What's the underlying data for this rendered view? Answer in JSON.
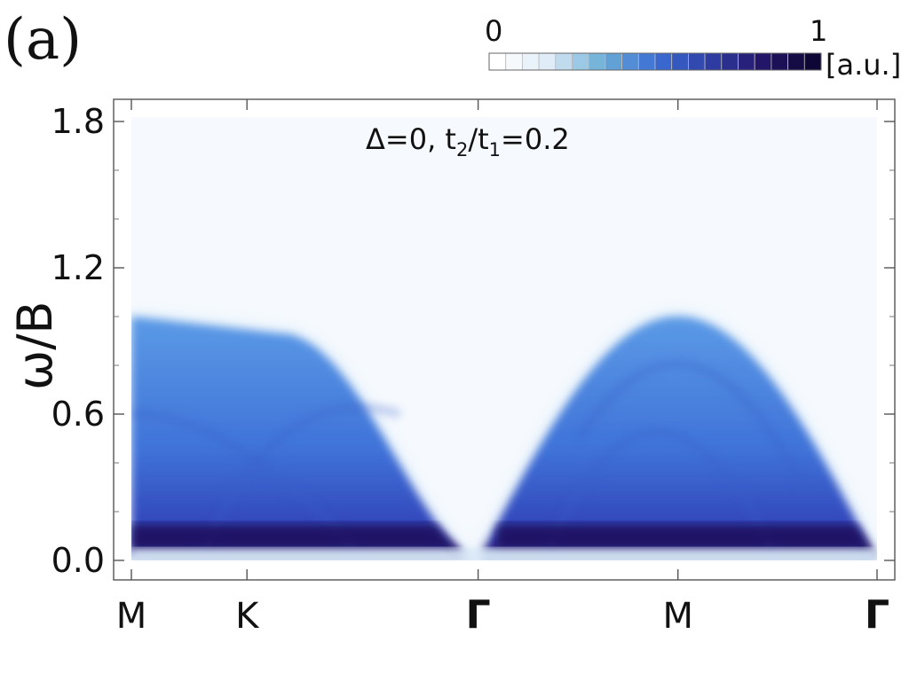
{
  "panel_label": "(a)",
  "colorbar": {
    "min_label": "0",
    "max_label": "1",
    "unit": "[a.u.]",
    "levels": 20,
    "colors": [
      "#ffffff",
      "#deebf7",
      "#6baed6",
      "#3b6fd4",
      "#2f3fa6",
      "#24166b",
      "#0e0735"
    ]
  },
  "chart_data": {
    "type": "heatmap",
    "title": "",
    "annotation": {
      "delta_text": "Δ=0, t",
      "sub1": "2",
      "slash_t": "/t",
      "sub2": "1",
      "ratio_text": "=0.2"
    },
    "xlabel": "",
    "ylabel": "ω/B",
    "ylim": [
      0.0,
      1.85
    ],
    "yticks": [
      {
        "value": 0.0,
        "label": "0.0"
      },
      {
        "value": 0.6,
        "label": "0.6"
      },
      {
        "value": 1.2,
        "label": "1.2"
      },
      {
        "value": 1.8,
        "label": "1.8"
      }
    ],
    "xticks": [
      {
        "position": 0.0,
        "label": "M"
      },
      {
        "position": 0.155,
        "label": "K"
      },
      {
        "position": 0.465,
        "label": "Γ"
      },
      {
        "position": 0.733,
        "label": "M"
      },
      {
        "position": 1.0,
        "label": "Γ"
      }
    ],
    "spectrum_upper_edge": [
      {
        "k": 0.0,
        "omega": 1.0
      },
      {
        "k": 0.155,
        "omega": 0.93
      },
      {
        "k": 0.25,
        "omega": 0.7
      },
      {
        "k": 0.465,
        "omega": 0.0
      },
      {
        "k": 0.733,
        "omega": 1.0
      },
      {
        "k": 1.0,
        "omega": 0.0
      }
    ],
    "intensity_peak": {
      "omega_range": [
        0.05,
        0.15
      ],
      "description_value": 1.0
    },
    "grid": false
  }
}
